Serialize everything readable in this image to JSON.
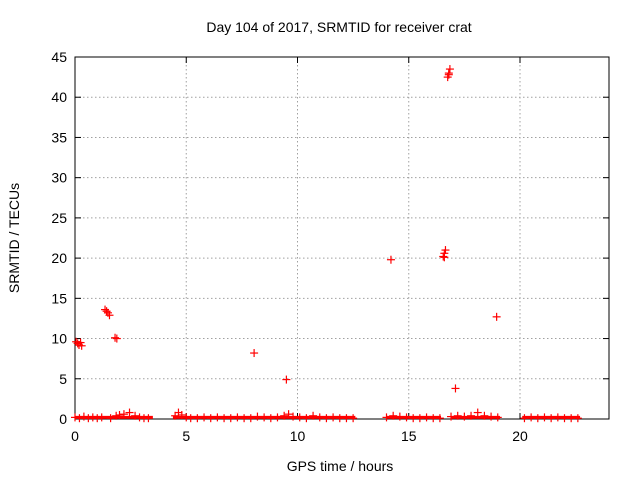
{
  "chart_data": {
    "type": "scatter",
    "title": "Day 104 of 2017, SRMTID for receiver crat",
    "xlabel": "GPS time / hours",
    "ylabel": "SRMTID / TECUs",
    "xlim": [
      0,
      24
    ],
    "ylim": [
      0,
      45
    ],
    "xticks": [
      0,
      5,
      10,
      15,
      20
    ],
    "yticks": [
      0,
      5,
      10,
      15,
      20,
      25,
      30,
      35,
      40,
      45
    ],
    "grid": true,
    "marker": "+",
    "marker_color": "#ff0000",
    "series": [
      {
        "name": "SRMTID",
        "points": [
          [
            0.05,
            9.6
          ],
          [
            0.12,
            9.4
          ],
          [
            0.18,
            9.2
          ],
          [
            0.25,
            9.5
          ],
          [
            0.3,
            9.1
          ],
          [
            1.35,
            13.6
          ],
          [
            1.42,
            13.4
          ],
          [
            1.48,
            13.2
          ],
          [
            1.55,
            12.9
          ],
          [
            1.8,
            10.1
          ],
          [
            1.88,
            10.0
          ],
          [
            8.05,
            8.2
          ],
          [
            9.5,
            4.9
          ],
          [
            14.2,
            19.8
          ],
          [
            16.55,
            20.2
          ],
          [
            16.6,
            20.6
          ],
          [
            16.65,
            21.0
          ],
          [
            16.6,
            20.1
          ],
          [
            16.75,
            42.5
          ],
          [
            16.8,
            43.0
          ],
          [
            16.85,
            43.5
          ],
          [
            16.8,
            42.8
          ],
          [
            17.1,
            3.8
          ],
          [
            18.95,
            12.7
          ],
          [
            0.0,
            0.2
          ],
          [
            0.2,
            0.1
          ],
          [
            0.4,
            0.3
          ],
          [
            0.6,
            0.1
          ],
          [
            0.8,
            0.2
          ],
          [
            1.0,
            0.1
          ],
          [
            1.2,
            0.2
          ],
          [
            1.6,
            0.1
          ],
          [
            1.85,
            0.4
          ],
          [
            2.0,
            0.5
          ],
          [
            2.2,
            0.6
          ],
          [
            2.45,
            0.8
          ],
          [
            2.7,
            0.4
          ],
          [
            2.9,
            0.2
          ],
          [
            3.1,
            0.1
          ],
          [
            3.3,
            0.1
          ],
          [
            4.5,
            0.4
          ],
          [
            4.65,
            0.8
          ],
          [
            4.8,
            0.5
          ],
          [
            5.0,
            0.2
          ],
          [
            5.2,
            0.1
          ],
          [
            5.5,
            0.1
          ],
          [
            5.8,
            0.2
          ],
          [
            6.1,
            0.1
          ],
          [
            6.4,
            0.2
          ],
          [
            6.7,
            0.1
          ],
          [
            7.0,
            0.1
          ],
          [
            7.3,
            0.2
          ],
          [
            7.6,
            0.1
          ],
          [
            7.9,
            0.1
          ],
          [
            8.2,
            0.3
          ],
          [
            8.5,
            0.2
          ],
          [
            8.8,
            0.1
          ],
          [
            9.1,
            0.2
          ],
          [
            9.4,
            0.4
          ],
          [
            9.6,
            0.6
          ],
          [
            9.8,
            0.3
          ],
          [
            10.1,
            0.2
          ],
          [
            10.4,
            0.1
          ],
          [
            10.7,
            0.4
          ],
          [
            11.0,
            0.2
          ],
          [
            11.3,
            0.1
          ],
          [
            11.6,
            0.2
          ],
          [
            11.9,
            0.1
          ],
          [
            12.2,
            0.1
          ],
          [
            12.5,
            0.1
          ],
          [
            14.0,
            0.2
          ],
          [
            14.3,
            0.4
          ],
          [
            14.6,
            0.3
          ],
          [
            14.9,
            0.2
          ],
          [
            15.2,
            0.1
          ],
          [
            15.5,
            0.1
          ],
          [
            15.8,
            0.2
          ],
          [
            16.1,
            0.1
          ],
          [
            16.4,
            0.1
          ],
          [
            16.9,
            0.3
          ],
          [
            17.2,
            0.4
          ],
          [
            17.5,
            0.3
          ],
          [
            17.8,
            0.4
          ],
          [
            18.1,
            0.8
          ],
          [
            18.4,
            0.4
          ],
          [
            18.7,
            0.3
          ],
          [
            19.0,
            0.2
          ],
          [
            20.2,
            0.1
          ],
          [
            20.5,
            0.2
          ],
          [
            20.8,
            0.1
          ],
          [
            21.1,
            0.2
          ],
          [
            21.4,
            0.1
          ],
          [
            21.7,
            0.2
          ],
          [
            22.0,
            0.1
          ],
          [
            22.3,
            0.1
          ],
          [
            22.6,
            0.1
          ]
        ]
      }
    ],
    "bands": [
      [
        0.0,
        3.5
      ],
      [
        4.4,
        12.6
      ],
      [
        14.0,
        16.45
      ],
      [
        16.9,
        19.1
      ],
      [
        20.1,
        22.7
      ]
    ]
  }
}
